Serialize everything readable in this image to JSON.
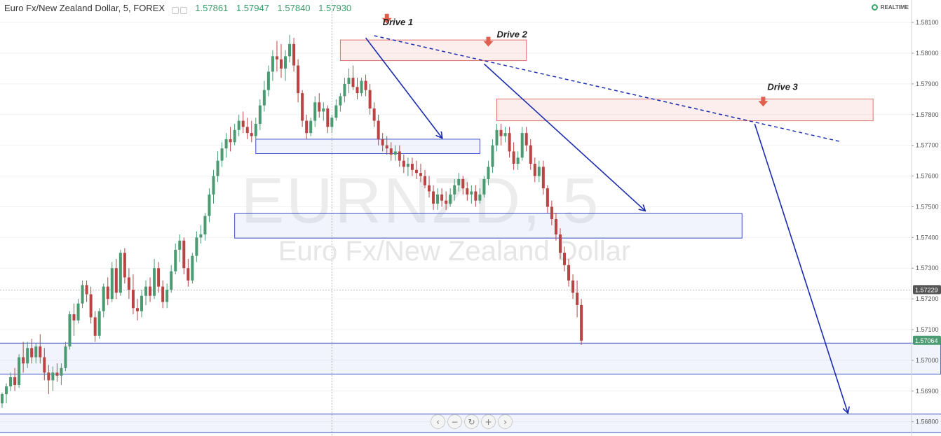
{
  "header": {
    "symbol": "Euro Fx/New Zealand Dollar, 5, FOREX",
    "open": "1.57861",
    "high": "1.57947",
    "low": "1.57840",
    "close": "1.57930"
  },
  "realtime_label": "REALTIME",
  "colors": {
    "up": "#4a9a72",
    "down": "#b84444",
    "zone_blue": "#3a4ec8",
    "zone_red": "#e07070",
    "arrow": "#1a2bb0"
  },
  "chart_data": {
    "type": "candlestick",
    "symbol": "EURNZD, 5",
    "watermark": "EURNZD, 5",
    "watermark_sub": "Euro Fx/New Zealand Dollar",
    "y_axis_ticks": [
      1.581,
      1.58,
      1.579,
      1.578,
      1.577,
      1.576,
      1.575,
      1.574,
      1.573,
      1.572,
      1.571,
      1.57,
      1.569,
      1.568
    ],
    "y_tick_labels": [
      "1.58100",
      "1.58000",
      "1.57900",
      "1.57800",
      "1.57700",
      "1.57600",
      "1.57500",
      "1.57400",
      "1.57300",
      "1.57200",
      "1.57100",
      "1.57000",
      "1.56900",
      "1.56800"
    ],
    "ylim": [
      1.56765,
      1.58155
    ],
    "price_labels": [
      {
        "label": "1.57229",
        "value": 1.57229,
        "color": "#555555"
      },
      {
        "label": "1.57064",
        "value": 1.57064,
        "color": "#4a9a72"
      }
    ],
    "drive_labels": [
      {
        "text": "Drive 1",
        "bar": 90,
        "price": 1.581
      },
      {
        "text": "Drive 2",
        "bar": 117,
        "price": 1.5806
      },
      {
        "text": "Drive 3",
        "bar": 181,
        "price": 1.5789
      }
    ],
    "supply_zones": [
      {
        "x1": 80,
        "x2": 124,
        "top": 1.58043,
        "bottom": 1.57976
      },
      {
        "x1": 117,
        "x2": 206,
        "top": 1.57851,
        "bottom": 1.5778
      }
    ],
    "demand_zones": [
      {
        "x1": 60,
        "x2": 113,
        "top": 1.5772,
        "bottom": 1.57673
      },
      {
        "x1": 55,
        "x2": 175,
        "top": 1.57478,
        "bottom": 1.57398
      },
      {
        "x1": 0,
        "x2": 222,
        "top": 1.57056,
        "bottom": 1.56955
      },
      {
        "x1": 0,
        "x2": 229,
        "top": 1.56825,
        "bottom": 1.56765
      }
    ],
    "trendline": {
      "from": {
        "bar": 88,
        "price": 1.58057
      },
      "to": {
        "bar": 198,
        "price": 1.57713
      }
    },
    "arrows": [
      {
        "from": {
          "bar": 86,
          "price": 1.5805
        },
        "to": {
          "bar": 104,
          "price": 1.57725
        }
      },
      {
        "from": {
          "bar": 114,
          "price": 1.57965
        },
        "to": {
          "bar": 152,
          "price": 1.57488
        }
      },
      {
        "from": {
          "bar": 178,
          "price": 1.5777
        },
        "to": {
          "bar": 200,
          "price": 1.5683
        }
      }
    ],
    "sell_markers": [
      {
        "bar": 91,
        "price": 1.5811
      },
      {
        "bar": 115,
        "price": 1.58035
      },
      {
        "bar": 180,
        "price": 1.5784
      }
    ],
    "crosshair_bar": 78,
    "crosshair_price": 1.57229,
    "candles": [
      [
        1.5686,
        1.56895,
        1.56845,
        1.5689
      ],
      [
        1.5689,
        1.56925,
        1.5686,
        1.56915
      ],
      [
        1.56915,
        1.5696,
        1.569,
        1.56945
      ],
      [
        1.56945,
        1.56975,
        1.569,
        1.5692
      ],
      [
        1.5692,
        1.5702,
        1.5691,
        1.5701
      ],
      [
        1.5701,
        1.5706,
        1.5696,
        1.5699
      ],
      [
        1.5699,
        1.5706,
        1.56975,
        1.5704
      ],
      [
        1.5704,
        1.5707,
        1.5699,
        1.5701
      ],
      [
        1.5701,
        1.57055,
        1.5699,
        1.57045
      ],
      [
        1.57045,
        1.57085,
        1.5699,
        1.5701
      ],
      [
        1.5701,
        1.5704,
        1.56935,
        1.5696
      ],
      [
        1.5696,
        1.56985,
        1.5689,
        1.56935
      ],
      [
        1.56935,
        1.5698,
        1.569,
        1.5696
      ],
      [
        1.5696,
        1.5699,
        1.5693,
        1.5695
      ],
      [
        1.5695,
        1.5699,
        1.5692,
        1.56975
      ],
      [
        1.56975,
        1.5706,
        1.56965,
        1.57045
      ],
      [
        1.57045,
        1.5716,
        1.57035,
        1.5715
      ],
      [
        1.5715,
        1.57185,
        1.5708,
        1.5713
      ],
      [
        1.5713,
        1.572,
        1.5712,
        1.57185
      ],
      [
        1.57185,
        1.5726,
        1.5717,
        1.57245
      ],
      [
        1.57245,
        1.5726,
        1.5719,
        1.57215
      ],
      [
        1.57215,
        1.5724,
        1.5712,
        1.5714
      ],
      [
        1.5714,
        1.5716,
        1.5706,
        1.5708
      ],
      [
        1.5708,
        1.5717,
        1.5707,
        1.5716
      ],
      [
        1.5716,
        1.5725,
        1.5714,
        1.5724
      ],
      [
        1.5724,
        1.5727,
        1.5718,
        1.572
      ],
      [
        1.572,
        1.5732,
        1.5719,
        1.573
      ],
      [
        1.573,
        1.5733,
        1.572,
        1.5722
      ],
      [
        1.5722,
        1.5736,
        1.5721,
        1.5735
      ],
      [
        1.5735,
        1.57365,
        1.5725,
        1.5727
      ],
      [
        1.5727,
        1.573,
        1.572,
        1.5723
      ],
      [
        1.5723,
        1.5728,
        1.5715,
        1.5717
      ],
      [
        1.5717,
        1.572,
        1.5713,
        1.5716
      ],
      [
        1.5716,
        1.5723,
        1.5714,
        1.5721
      ],
      [
        1.5721,
        1.5726,
        1.5718,
        1.5724
      ],
      [
        1.5724,
        1.5727,
        1.5719,
        1.5721
      ],
      [
        1.5721,
        1.5733,
        1.572,
        1.573
      ],
      [
        1.573,
        1.5732,
        1.5722,
        1.5724
      ],
      [
        1.5724,
        1.5726,
        1.5717,
        1.5719
      ],
      [
        1.5719,
        1.5725,
        1.5717,
        1.5723
      ],
      [
        1.5723,
        1.5731,
        1.5722,
        1.5729
      ],
      [
        1.5729,
        1.5738,
        1.5728,
        1.5736
      ],
      [
        1.5736,
        1.5741,
        1.5732,
        1.5739
      ],
      [
        1.5739,
        1.574,
        1.5728,
        1.573
      ],
      [
        1.573,
        1.5733,
        1.5724,
        1.5726
      ],
      [
        1.5726,
        1.5735,
        1.5725,
        1.5734
      ],
      [
        1.5734,
        1.5742,
        1.5732,
        1.574
      ],
      [
        1.574,
        1.5744,
        1.5738,
        1.5741
      ],
      [
        1.5741,
        1.5748,
        1.5739,
        1.5747
      ],
      [
        1.5747,
        1.5756,
        1.5745,
        1.5754
      ],
      [
        1.5754,
        1.5762,
        1.5751,
        1.576
      ],
      [
        1.576,
        1.5768,
        1.5758,
        1.5765
      ],
      [
        1.5765,
        1.5771,
        1.5763,
        1.5769
      ],
      [
        1.5769,
        1.5774,
        1.5766,
        1.5772
      ],
      [
        1.5772,
        1.5776,
        1.5768,
        1.5771
      ],
      [
        1.5771,
        1.5777,
        1.577,
        1.5775
      ],
      [
        1.5775,
        1.578,
        1.5773,
        1.5778
      ],
      [
        1.5778,
        1.5781,
        1.5774,
        1.5776
      ],
      [
        1.5776,
        1.5779,
        1.5772,
        1.5774
      ],
      [
        1.5774,
        1.5778,
        1.5771,
        1.5773
      ],
      [
        1.5773,
        1.5779,
        1.5772,
        1.5777
      ],
      [
        1.5777,
        1.5785,
        1.5775,
        1.5783
      ],
      [
        1.5783,
        1.5791,
        1.5781,
        1.5788
      ],
      [
        1.5788,
        1.5796,
        1.5786,
        1.5794
      ],
      [
        1.5794,
        1.5801,
        1.5791,
        1.5799
      ],
      [
        1.5799,
        1.5804,
        1.5794,
        1.5798
      ],
      [
        1.5798,
        1.5803,
        1.5792,
        1.5795
      ],
      [
        1.5795,
        1.5801,
        1.5791,
        1.5799
      ],
      [
        1.5799,
        1.5806,
        1.5797,
        1.5803
      ],
      [
        1.5803,
        1.5805,
        1.5794,
        1.5796
      ],
      [
        1.5796,
        1.5798,
        1.5784,
        1.5787
      ],
      [
        1.5787,
        1.5788,
        1.5776,
        1.5778
      ],
      [
        1.5778,
        1.578,
        1.5772,
        1.5774
      ],
      [
        1.5774,
        1.5779,
        1.5773,
        1.5778
      ],
      [
        1.5778,
        1.5786,
        1.5776,
        1.5784
      ],
      [
        1.5784,
        1.5787,
        1.5779,
        1.5781
      ],
      [
        1.5781,
        1.5784,
        1.5778,
        1.5782
      ],
      [
        1.5782,
        1.5783,
        1.5774,
        1.5776
      ],
      [
        1.5776,
        1.578,
        1.5774,
        1.5779
      ],
      [
        1.5779,
        1.5785,
        1.5778,
        1.5783
      ],
      [
        1.5783,
        1.5787,
        1.5781,
        1.5786
      ],
      [
        1.5786,
        1.5792,
        1.5784,
        1.579
      ],
      [
        1.579,
        1.5795,
        1.5787,
        1.5792
      ],
      [
        1.5792,
        1.5796,
        1.5788,
        1.5789
      ],
      [
        1.5789,
        1.5792,
        1.5785,
        1.5787
      ],
      [
        1.5787,
        1.5792,
        1.5786,
        1.5791
      ],
      [
        1.5791,
        1.5793,
        1.5786,
        1.5788
      ],
      [
        1.5788,
        1.579,
        1.578,
        1.5782
      ],
      [
        1.5782,
        1.5784,
        1.5776,
        1.5778
      ],
      [
        1.5778,
        1.578,
        1.577,
        1.5772
      ],
      [
        1.5772,
        1.5774,
        1.5768,
        1.577
      ],
      [
        1.577,
        1.5773,
        1.5767,
        1.5769
      ],
      [
        1.5769,
        1.5771,
        1.5765,
        1.5767
      ],
      [
        1.5767,
        1.577,
        1.5765,
        1.5768
      ],
      [
        1.5768,
        1.577,
        1.5763,
        1.5765
      ],
      [
        1.5765,
        1.5767,
        1.5761,
        1.5763
      ],
      [
        1.5763,
        1.5766,
        1.576,
        1.5764
      ],
      [
        1.5764,
        1.5766,
        1.576,
        1.5762
      ],
      [
        1.5762,
        1.5765,
        1.5759,
        1.5761
      ],
      [
        1.5761,
        1.5764,
        1.5758,
        1.576
      ],
      [
        1.576,
        1.5762,
        1.5756,
        1.5757
      ],
      [
        1.5757,
        1.576,
        1.5753,
        1.5755
      ],
      [
        1.5755,
        1.5757,
        1.5749,
        1.5751
      ],
      [
        1.5751,
        1.5756,
        1.5749,
        1.5754
      ],
      [
        1.5754,
        1.5756,
        1.575,
        1.5752
      ],
      [
        1.5752,
        1.5755,
        1.5749,
        1.5751
      ],
      [
        1.5751,
        1.5756,
        1.575,
        1.5754
      ],
      [
        1.5754,
        1.5759,
        1.5752,
        1.5757
      ],
      [
        1.5757,
        1.5761,
        1.5755,
        1.5759
      ],
      [
        1.5759,
        1.576,
        1.5754,
        1.5756
      ],
      [
        1.5756,
        1.5758,
        1.5752,
        1.5754
      ],
      [
        1.5754,
        1.5757,
        1.5751,
        1.5755
      ],
      [
        1.5755,
        1.5757,
        1.575,
        1.5752
      ],
      [
        1.5752,
        1.5756,
        1.5751,
        1.5754
      ],
      [
        1.5754,
        1.576,
        1.5753,
        1.5759
      ],
      [
        1.5759,
        1.5765,
        1.5757,
        1.5763
      ],
      [
        1.5763,
        1.5772,
        1.5761,
        1.577
      ],
      [
        1.577,
        1.5777,
        1.5768,
        1.5775
      ],
      [
        1.5775,
        1.5777,
        1.577,
        1.5773
      ],
      [
        1.5773,
        1.5776,
        1.5771,
        1.5774
      ],
      [
        1.5774,
        1.5776,
        1.5766,
        1.5768
      ],
      [
        1.5768,
        1.5771,
        1.5762,
        1.5764
      ],
      [
        1.5764,
        1.5768,
        1.5762,
        1.5766
      ],
      [
        1.5766,
        1.5776,
        1.5765,
        1.5774
      ],
      [
        1.5774,
        1.5776,
        1.5768,
        1.577
      ],
      [
        1.577,
        1.5772,
        1.5762,
        1.5764
      ],
      [
        1.5764,
        1.5766,
        1.5758,
        1.576
      ],
      [
        1.576,
        1.5765,
        1.5758,
        1.5763
      ],
      [
        1.5763,
        1.5765,
        1.5754,
        1.5756
      ],
      [
        1.5756,
        1.5757,
        1.5748,
        1.575
      ],
      [
        1.575,
        1.5752,
        1.5744,
        1.5746
      ],
      [
        1.5746,
        1.5748,
        1.5739,
        1.5741
      ],
      [
        1.5741,
        1.5743,
        1.5733,
        1.5735
      ],
      [
        1.5735,
        1.5737,
        1.5729,
        1.5731
      ],
      [
        1.5731,
        1.5733,
        1.5724,
        1.5726
      ],
      [
        1.5726,
        1.5728,
        1.572,
        1.5722
      ],
      [
        1.5722,
        1.5726,
        1.5714,
        1.5718
      ],
      [
        1.5718,
        1.572,
        1.5705,
        1.57064
      ]
    ]
  }
}
